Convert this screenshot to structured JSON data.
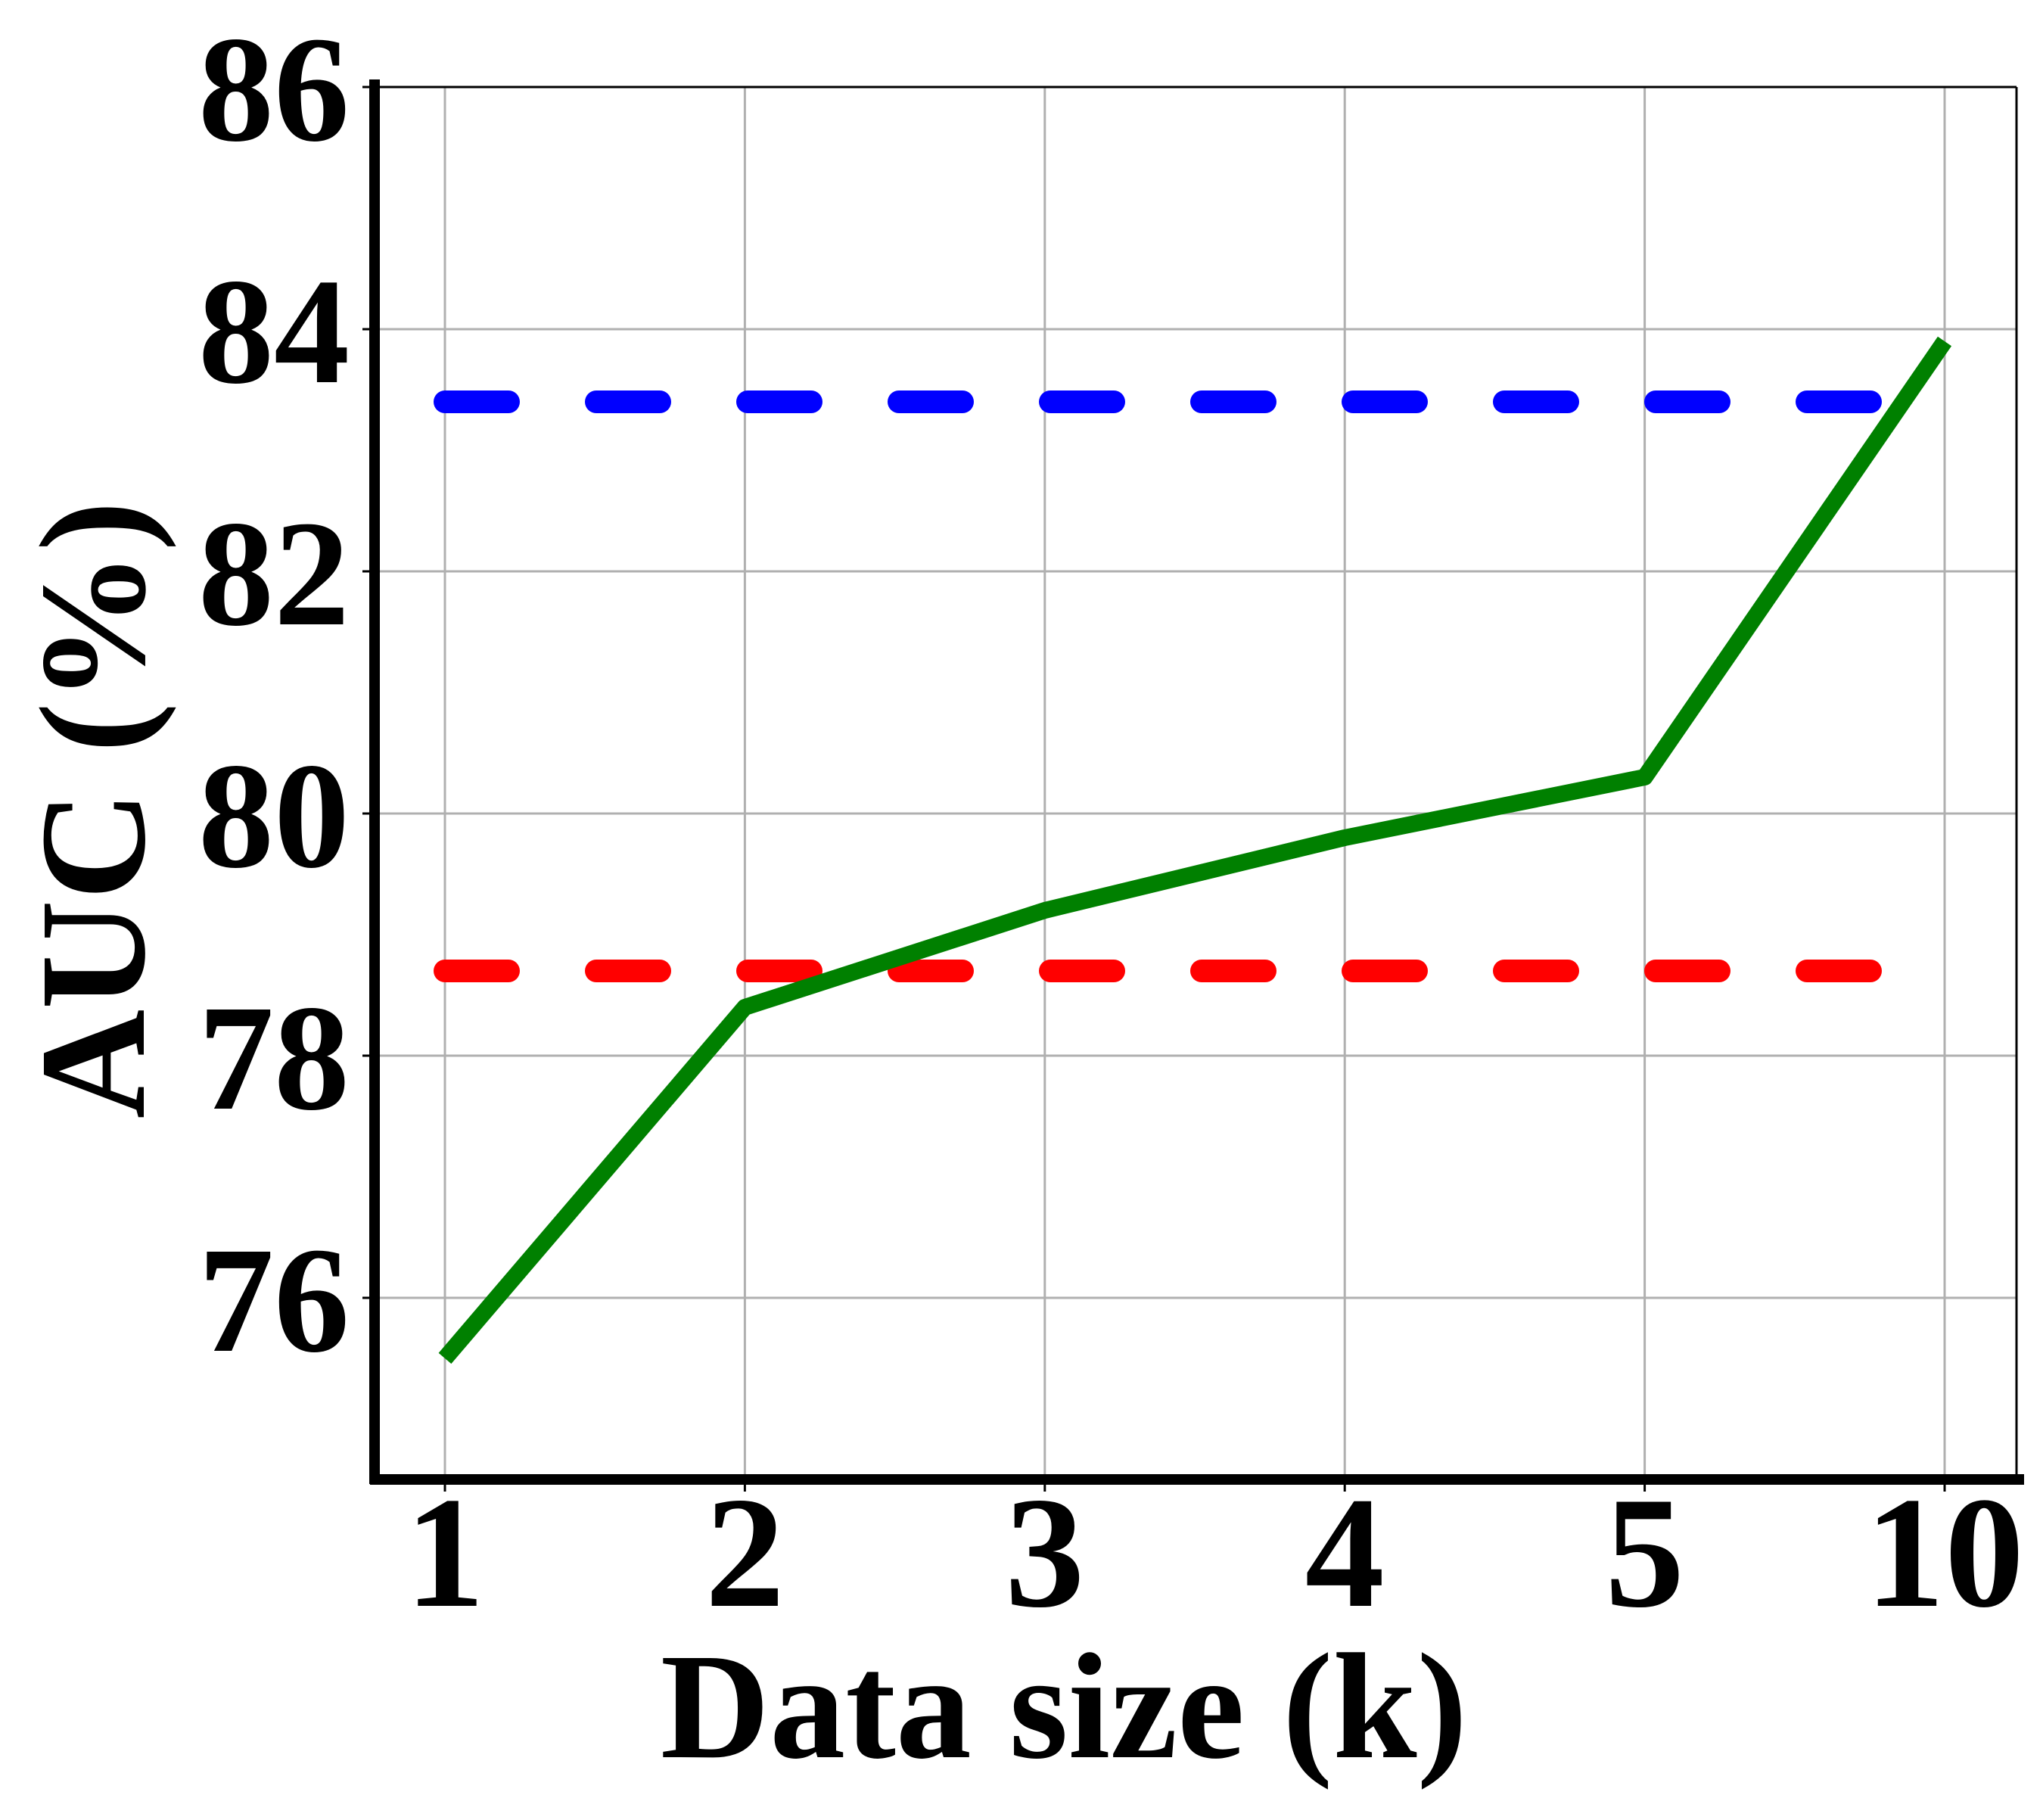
{
  "chart_data": {
    "type": "line",
    "title": "",
    "xlabel": "Data size (k)",
    "ylabel": "AUC (%)",
    "categories": [
      "1",
      "2",
      "3",
      "4",
      "5",
      "10"
    ],
    "ylim": [
      74.5,
      86
    ],
    "yticks": [
      76,
      78,
      80,
      82,
      84,
      86
    ],
    "grid": true,
    "legend": "none",
    "series": [
      {
        "values": [
          75.5,
          78.4,
          79.2,
          79.8,
          80.3,
          83.9
        ],
        "color": "#008000",
        "style": "solid"
      }
    ],
    "reference_lines": [
      {
        "value": 83.4,
        "color": "#0000ff",
        "style": "dashed"
      },
      {
        "value": 78.7,
        "color": "#ff0000",
        "style": "dashed"
      }
    ]
  }
}
